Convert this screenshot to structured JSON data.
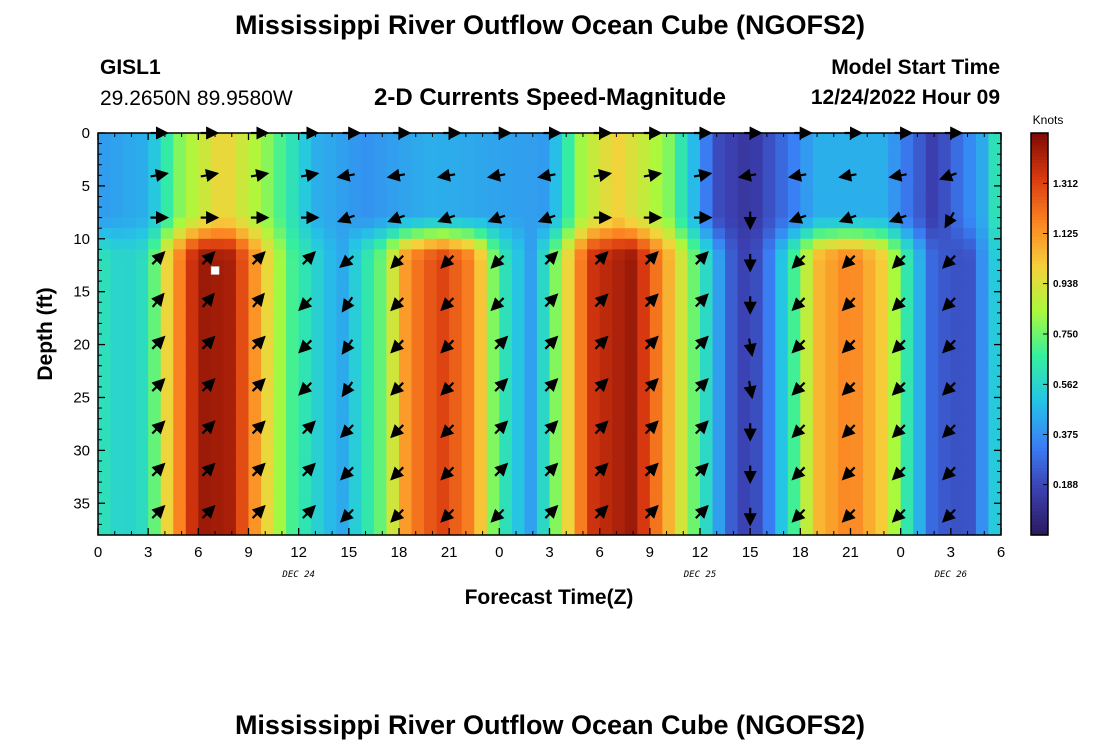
{
  "title": "Mississippi River Outflow Ocean Cube (NGOFS2)",
  "footer_title": "Mississippi River Outflow Ocean Cube (NGOFS2)",
  "station": {
    "id": "GISL1",
    "coords": "29.2650N  89.9580W"
  },
  "subtitle": "2-D Currents Speed-Magnitude",
  "model": {
    "label": "Model Start Time",
    "value": "12/24/2022 Hour 09"
  },
  "colors": {
    "colormap": [
      "#2b1a5c",
      "#3b3fb0",
      "#3a7ff5",
      "#25c4e6",
      "#35ef9e",
      "#a9f93d",
      "#f6d13b",
      "#fb8422",
      "#d9390f",
      "#7d0a04"
    ],
    "arrow": "#000000",
    "marker": "#ffffff"
  },
  "chart_data": {
    "type": "heatmap",
    "title": "2-D Currents Speed-Magnitude",
    "xlabel": "Forecast Time(Z)",
    "ylabel": "Depth (ft)",
    "xlim": [
      0,
      54
    ],
    "ylim": [
      38,
      0
    ],
    "x_ticks": [
      {
        "x": 0,
        "label": "0"
      },
      {
        "x": 3,
        "label": "3"
      },
      {
        "x": 6,
        "label": "6"
      },
      {
        "x": 9,
        "label": "9"
      },
      {
        "x": 12,
        "label": "12"
      },
      {
        "x": 15,
        "label": "15"
      },
      {
        "x": 18,
        "label": "18"
      },
      {
        "x": 21,
        "label": "21"
      },
      {
        "x": 24,
        "label": "0"
      },
      {
        "x": 27,
        "label": "3"
      },
      {
        "x": 30,
        "label": "6"
      },
      {
        "x": 33,
        "label": "9"
      },
      {
        "x": 36,
        "label": "12"
      },
      {
        "x": 39,
        "label": "15"
      },
      {
        "x": 42,
        "label": "18"
      },
      {
        "x": 45,
        "label": "21"
      },
      {
        "x": 48,
        "label": "0"
      },
      {
        "x": 51,
        "label": "3"
      },
      {
        "x": 54,
        "label": "6"
      }
    ],
    "date_labels": [
      {
        "x": 12,
        "label": "DEC 24"
      },
      {
        "x": 36,
        "label": "DEC 25"
      },
      {
        "x": 51,
        "label": "DEC 26"
      }
    ],
    "y_ticks": [
      0,
      5,
      10,
      15,
      20,
      25,
      30,
      35
    ],
    "colorbar": {
      "label": "Knots",
      "min": 0.0,
      "max": 1.5,
      "ticks": [
        "1.312",
        "1.125",
        "0.938",
        "0.750",
        "0.562",
        "0.375",
        "0.188"
      ]
    },
    "speed_profile_surface_knots": [
      {
        "t": 0,
        "v": 0.4
      },
      {
        "t": 3,
        "v": 0.45
      },
      {
        "t": 5,
        "v": 0.8
      },
      {
        "t": 7.5,
        "v": 1.0
      },
      {
        "t": 10,
        "v": 0.8
      },
      {
        "t": 13,
        "v": 0.45
      },
      {
        "t": 16,
        "v": 0.38
      },
      {
        "t": 20,
        "v": 0.45
      },
      {
        "t": 24,
        "v": 0.42
      },
      {
        "t": 27,
        "v": 0.4
      },
      {
        "t": 29,
        "v": 0.85
      },
      {
        "t": 31,
        "v": 1.0
      },
      {
        "t": 34,
        "v": 0.8
      },
      {
        "t": 37,
        "v": 0.2
      },
      {
        "t": 39,
        "v": 0.12
      },
      {
        "t": 43,
        "v": 0.45
      },
      {
        "t": 47,
        "v": 0.45
      },
      {
        "t": 50,
        "v": 0.15
      },
      {
        "t": 53,
        "v": 0.45
      },
      {
        "t": 54,
        "v": 0.7
      }
    ],
    "speed_profile_deep_knots": [
      {
        "t": 0,
        "v": 0.62
      },
      {
        "t": 1.5,
        "v": 0.55
      },
      {
        "t": 3,
        "v": 0.6
      },
      {
        "t": 4,
        "v": 0.95
      },
      {
        "t": 6,
        "v": 1.45
      },
      {
        "t": 8,
        "v": 1.42
      },
      {
        "t": 10,
        "v": 1.0
      },
      {
        "t": 11.5,
        "v": 0.7
      },
      {
        "t": 14.5,
        "v": 0.42
      },
      {
        "t": 17,
        "v": 0.75
      },
      {
        "t": 18.5,
        "v": 1.15
      },
      {
        "t": 20.5,
        "v": 1.32
      },
      {
        "t": 22.5,
        "v": 1.15
      },
      {
        "t": 24,
        "v": 0.65
      },
      {
        "t": 26,
        "v": 0.4
      },
      {
        "t": 28,
        "v": 0.95
      },
      {
        "t": 29.5,
        "v": 1.35
      },
      {
        "t": 32,
        "v": 1.45
      },
      {
        "t": 34.5,
        "v": 1.0
      },
      {
        "t": 36.5,
        "v": 0.55
      },
      {
        "t": 38,
        "v": 0.22
      },
      {
        "t": 39,
        "v": 0.15
      },
      {
        "t": 40,
        "v": 0.3
      },
      {
        "t": 41.5,
        "v": 0.65
      },
      {
        "t": 43,
        "v": 1.05
      },
      {
        "t": 45,
        "v": 1.18
      },
      {
        "t": 47,
        "v": 1.0
      },
      {
        "t": 48.5,
        "v": 0.6
      },
      {
        "t": 50,
        "v": 0.25
      },
      {
        "t": 52,
        "v": 0.2
      },
      {
        "t": 54,
        "v": 0.6
      }
    ],
    "vector_times": [
      3.5,
      6.5,
      9.5,
      12.5,
      15,
      18,
      21,
      24,
      27,
      30,
      33,
      36,
      39,
      42,
      45,
      48,
      51
    ],
    "vector_depths": [
      0,
      4,
      8,
      12,
      16,
      20,
      24,
      28,
      32,
      36
    ],
    "vector_direction_deg": [
      [
        0,
        0,
        0,
        0,
        0,
        0,
        0,
        0,
        0,
        0,
        0,
        0,
        0,
        0,
        0,
        0,
        0
      ],
      [
        10,
        10,
        10,
        10,
        190,
        190,
        190,
        190,
        190,
        10,
        10,
        10,
        190,
        190,
        190,
        190,
        200
      ],
      [
        0,
        0,
        0,
        0,
        200,
        200,
        200,
        200,
        200,
        0,
        0,
        0,
        270,
        200,
        200,
        200,
        240
      ],
      [
        45,
        45,
        45,
        45,
        220,
        225,
        225,
        225,
        45,
        45,
        45,
        45,
        270,
        225,
        225,
        225,
        225
      ],
      [
        50,
        50,
        50,
        225,
        235,
        225,
        225,
        225,
        45,
        45,
        45,
        45,
        270,
        225,
        225,
        225,
        225
      ],
      [
        45,
        45,
        45,
        225,
        235,
        225,
        225,
        45,
        45,
        45,
        45,
        45,
        280,
        225,
        225,
        225,
        225
      ],
      [
        45,
        45,
        45,
        225,
        235,
        225,
        225,
        45,
        45,
        45,
        45,
        45,
        280,
        225,
        225,
        225,
        225
      ],
      [
        45,
        45,
        45,
        45,
        225,
        225,
        225,
        45,
        45,
        45,
        45,
        45,
        270,
        225,
        225,
        225,
        225
      ],
      [
        45,
        45,
        45,
        45,
        225,
        225,
        225,
        45,
        45,
        45,
        45,
        45,
        270,
        225,
        225,
        225,
        225
      ],
      [
        45,
        45,
        45,
        45,
        225,
        225,
        225,
        225,
        45,
        45,
        45,
        45,
        270,
        225,
        225,
        225,
        225
      ]
    ],
    "marker": {
      "x": 7,
      "y": 13
    }
  }
}
